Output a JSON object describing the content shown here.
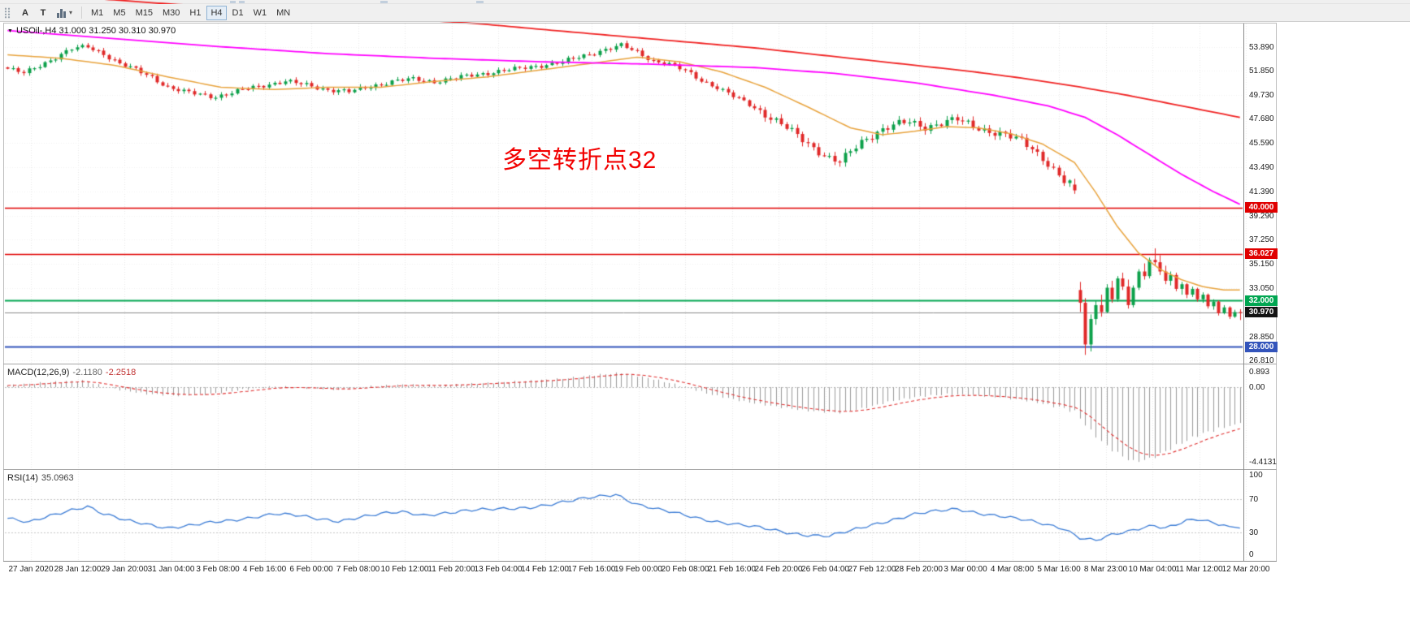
{
  "toolbar": {
    "letter_a": "A",
    "letter_t": "T",
    "indicator_caret": "▾",
    "timeframes": [
      "M1",
      "M5",
      "M15",
      "M30",
      "H1",
      "H4",
      "D1",
      "W1",
      "MN"
    ],
    "active_timeframe": "H4"
  },
  "chart": {
    "symbol_marker": "▼",
    "symbol_info": "USOil-,H4 31.000 31.250 30.310 30.970",
    "annotation": {
      "text": "多空转折点32",
      "color": "#f20000"
    },
    "price_axis_ticks": [
      "53.890",
      "51.850",
      "49.730",
      "47.680",
      "45.590",
      "43.490",
      "41.390",
      "39.290",
      "37.250",
      "35.150",
      "33.050",
      "30.950",
      "28.850",
      "26.810"
    ],
    "levels": [
      {
        "price": 40.0,
        "label": "40.000",
        "color": "#e00000",
        "width": 1.5
      },
      {
        "price": 36.027,
        "label": "36.027",
        "color": "#e00000",
        "width": 1.5
      },
      {
        "price": 32.0,
        "label": "32.000",
        "color": "#00a651",
        "width": 2
      },
      {
        "price": 28.0,
        "label": "28.000",
        "color": "#3354bb",
        "width": 1.8
      }
    ],
    "current_price": {
      "price": 30.97,
      "label": "30.970",
      "line_color": "#8a8a8a",
      "badge_bg": "#141414"
    }
  },
  "macd_panel": {
    "label": "MACD(12,26,9)",
    "value1": "-2.1180",
    "value2": "-2.2518",
    "ticks": [
      "0.893",
      "0.00",
      "-4.4131"
    ]
  },
  "rsi_panel": {
    "label": "RSI(14)",
    "value": "35.0963",
    "ticks": [
      "100",
      "70",
      "30",
      "0"
    ]
  },
  "time_axis": {
    "labels": [
      "27 Jan 2020",
      "28 Jan 12:00",
      "29 Jan 20:00",
      "31 Jan 04:00",
      "3 Feb 08:00",
      "4 Feb 16:00",
      "6 Feb 00:00",
      "7 Feb 08:00",
      "10 Feb 12:00",
      "11 Feb 20:00",
      "13 Feb 04:00",
      "14 Feb 12:00",
      "17 Feb 16:00",
      "19 Feb 00:00",
      "20 Feb 08:00",
      "21 Feb 16:00",
      "24 Feb 20:00",
      "26 Feb 04:00",
      "27 Feb 12:00",
      "28 Feb 20:00",
      "3 Mar 00:00",
      "4 Mar 08:00",
      "5 Mar 16:00",
      "8 Mar 23:00",
      "10 Mar 04:00",
      "11 Mar 12:00",
      "12 Mar 20:00"
    ]
  },
  "chart_data": {
    "type": "candlestick",
    "symbol": "USOil",
    "timeframe": "H4",
    "ohlc_last": {
      "open": 31.0,
      "high": 31.25,
      "low": 30.31,
      "close": 30.97
    },
    "price_range": {
      "min": 26.55,
      "max": 55.9
    },
    "candle_count": 232,
    "up_color": "#0ca04a",
    "down_color": "#e02828",
    "close_anchors": [
      [
        0,
        52.0
      ],
      [
        3,
        51.6
      ],
      [
        6,
        52.3
      ],
      [
        9,
        53.0
      ],
      [
        12,
        53.7
      ],
      [
        15,
        53.9
      ],
      [
        18,
        53.3
      ],
      [
        21,
        52.4
      ],
      [
        24,
        51.9
      ],
      [
        27,
        51.3
      ],
      [
        30,
        50.4
      ],
      [
        33,
        50.0
      ],
      [
        36,
        49.8
      ],
      [
        39,
        49.6
      ],
      [
        42,
        49.9
      ],
      [
        45,
        50.3
      ],
      [
        48,
        50.6
      ],
      [
        52,
        50.9
      ],
      [
        56,
        50.6
      ],
      [
        60,
        50.2
      ],
      [
        64,
        50.0
      ],
      [
        68,
        50.5
      ],
      [
        72,
        50.9
      ],
      [
        76,
        51.1
      ],
      [
        80,
        50.9
      ],
      [
        84,
        51.2
      ],
      [
        88,
        51.5
      ],
      [
        92,
        51.8
      ],
      [
        96,
        52.0
      ],
      [
        100,
        52.3
      ],
      [
        104,
        52.6
      ],
      [
        108,
        53.1
      ],
      [
        112,
        53.7
      ],
      [
        115,
        54.0
      ],
      [
        118,
        53.4
      ],
      [
        121,
        52.7
      ],
      [
        124,
        52.4
      ],
      [
        127,
        51.8
      ],
      [
        130,
        51.0
      ],
      [
        133,
        50.4
      ],
      [
        136,
        49.6
      ],
      [
        139,
        48.9
      ],
      [
        142,
        48.1
      ],
      [
        145,
        47.2
      ],
      [
        148,
        46.2
      ],
      [
        151,
        45.2
      ],
      [
        154,
        44.3
      ],
      [
        156,
        43.9
      ],
      [
        158,
        44.8
      ],
      [
        160,
        45.7
      ],
      [
        163,
        46.6
      ],
      [
        166,
        47.1
      ],
      [
        169,
        47.4
      ],
      [
        172,
        47.0
      ],
      [
        175,
        47.3
      ],
      [
        178,
        47.6
      ],
      [
        181,
        47.1
      ],
      [
        184,
        46.6
      ],
      [
        187,
        46.2
      ],
      [
        190,
        45.8
      ],
      [
        192,
        45.2
      ],
      [
        194,
        44.3
      ],
      [
        196,
        43.2
      ],
      [
        198,
        42.2
      ],
      [
        200,
        41.9
      ]
    ],
    "tail_start": 200,
    "tail_candles": [
      [
        42.0,
        42.5,
        41.2,
        41.5
      ],
      [
        32.9,
        33.6,
        31.0,
        31.8
      ],
      [
        31.8,
        32.2,
        27.3,
        28.2
      ],
      [
        28.2,
        30.8,
        27.6,
        30.4
      ],
      [
        30.4,
        32.0,
        29.9,
        31.6
      ],
      [
        31.6,
        32.5,
        30.6,
        31.0
      ],
      [
        31.0,
        33.4,
        30.9,
        33.1
      ],
      [
        33.1,
        33.7,
        31.8,
        32.1
      ],
      [
        32.1,
        34.1,
        31.9,
        33.9
      ],
      [
        33.9,
        34.4,
        32.9,
        33.2
      ],
      [
        33.2,
        33.8,
        31.3,
        31.6
      ],
      [
        31.6,
        33.3,
        31.4,
        33.1
      ],
      [
        33.1,
        34.7,
        32.9,
        34.5
      ],
      [
        34.5,
        35.2,
        33.8,
        34.1
      ],
      [
        34.1,
        35.7,
        33.9,
        35.5
      ],
      [
        35.5,
        36.5,
        35.0,
        35.3
      ],
      [
        35.3,
        35.9,
        34.2,
        34.5
      ],
      [
        34.5,
        35.0,
        33.4,
        33.7
      ],
      [
        33.7,
        34.5,
        33.3,
        34.2
      ],
      [
        34.2,
        34.4,
        32.8,
        33.0
      ],
      [
        33.0,
        33.6,
        32.5,
        33.4
      ],
      [
        33.4,
        33.5,
        32.2,
        32.5
      ],
      [
        32.5,
        33.2,
        32.3,
        33.0
      ],
      [
        33.0,
        33.1,
        31.9,
        32.1
      ],
      [
        32.1,
        32.7,
        31.8,
        32.5
      ],
      [
        32.5,
        32.6,
        31.3,
        31.5
      ],
      [
        31.5,
        32.1,
        31.2,
        31.9
      ],
      [
        31.9,
        32.0,
        30.7,
        30.9
      ],
      [
        30.9,
        31.6,
        30.8,
        31.4
      ],
      [
        31.4,
        31.5,
        30.4,
        30.6
      ],
      [
        30.6,
        31.2,
        30.5,
        31.0
      ],
      [
        31.0,
        31.25,
        30.31,
        30.97
      ]
    ],
    "moving_averages": [
      {
        "name": "ma-fast-orange",
        "color": "#e8a33d",
        "width": 1.5,
        "anchors": [
          [
            0,
            53.2
          ],
          [
            10,
            52.9
          ],
          [
            20,
            52.3
          ],
          [
            30,
            51.3
          ],
          [
            40,
            50.4
          ],
          [
            50,
            50.2
          ],
          [
            60,
            50.4
          ],
          [
            70,
            50.4
          ],
          [
            80,
            50.9
          ],
          [
            90,
            51.3
          ],
          [
            100,
            51.9
          ],
          [
            110,
            52.5
          ],
          [
            118,
            53.0
          ],
          [
            126,
            52.6
          ],
          [
            134,
            51.7
          ],
          [
            142,
            50.4
          ],
          [
            150,
            48.7
          ],
          [
            158,
            46.9
          ],
          [
            164,
            46.3
          ],
          [
            170,
            46.6
          ],
          [
            176,
            47.0
          ],
          [
            182,
            46.9
          ],
          [
            188,
            46.4
          ],
          [
            194,
            45.5
          ],
          [
            200,
            43.9
          ],
          [
            204,
            41.3
          ],
          [
            208,
            38.4
          ],
          [
            212,
            36.1
          ],
          [
            216,
            34.7
          ],
          [
            220,
            33.8
          ],
          [
            224,
            33.2
          ],
          [
            228,
            32.9
          ],
          [
            231,
            32.9
          ]
        ]
      },
      {
        "name": "ma-mid-magenta",
        "color": "#ff00ff",
        "width": 1.8,
        "anchors": [
          [
            0,
            55.3
          ],
          [
            20,
            54.6
          ],
          [
            40,
            53.9
          ],
          [
            60,
            53.3
          ],
          [
            80,
            52.9
          ],
          [
            100,
            52.6
          ],
          [
            120,
            52.4
          ],
          [
            140,
            52.1
          ],
          [
            155,
            51.6
          ],
          [
            170,
            50.8
          ],
          [
            185,
            49.7
          ],
          [
            195,
            48.8
          ],
          [
            202,
            47.8
          ],
          [
            208,
            46.3
          ],
          [
            214,
            44.6
          ],
          [
            220,
            42.9
          ],
          [
            226,
            41.4
          ],
          [
            231,
            40.3
          ]
        ]
      },
      {
        "name": "ma-slow-red",
        "color": "#f02222",
        "width": 1.8,
        "anchors": [
          [
            0,
            58.6
          ],
          [
            30,
            57.6
          ],
          [
            60,
            56.7
          ],
          [
            88,
            55.9
          ],
          [
            100,
            55.4
          ],
          [
            110,
            55.0
          ],
          [
            120,
            54.6
          ],
          [
            130,
            54.2
          ],
          [
            140,
            53.8
          ],
          [
            150,
            53.3
          ],
          [
            160,
            52.8
          ],
          [
            170,
            52.3
          ],
          [
            180,
            51.8
          ],
          [
            190,
            51.2
          ],
          [
            200,
            50.5
          ],
          [
            210,
            49.7
          ],
          [
            220,
            48.8
          ],
          [
            231,
            47.8
          ]
        ]
      }
    ],
    "macd": {
      "range": {
        "min": -4.85,
        "max": 1.3
      },
      "hist_color": "#9a9a9a",
      "signal_color": "#e03131",
      "anchors": [
        [
          0,
          0.1
        ],
        [
          8,
          0.3
        ],
        [
          14,
          0.38
        ],
        [
          20,
          -0.1
        ],
        [
          26,
          -0.4
        ],
        [
          32,
          -0.5
        ],
        [
          38,
          -0.4
        ],
        [
          44,
          -0.15
        ],
        [
          50,
          0.05
        ],
        [
          56,
          -0.05
        ],
        [
          62,
          -0.15
        ],
        [
          68,
          0.05
        ],
        [
          74,
          0.15
        ],
        [
          80,
          0.1
        ],
        [
          86,
          0.18
        ],
        [
          92,
          0.28
        ],
        [
          98,
          0.38
        ],
        [
          104,
          0.5
        ],
        [
          110,
          0.72
        ],
        [
          115,
          0.85
        ],
        [
          120,
          0.55
        ],
        [
          126,
          0.1
        ],
        [
          132,
          -0.45
        ],
        [
          138,
          -0.85
        ],
        [
          144,
          -1.15
        ],
        [
          150,
          -1.4
        ],
        [
          156,
          -1.52
        ],
        [
          161,
          -1.2
        ],
        [
          166,
          -0.8
        ],
        [
          171,
          -0.55
        ],
        [
          176,
          -0.42
        ],
        [
          181,
          -0.48
        ],
        [
          186,
          -0.6
        ],
        [
          191,
          -0.8
        ],
        [
          196,
          -1.1
        ],
        [
          200,
          -1.45
        ],
        [
          203,
          -2.6
        ],
        [
          206,
          -3.5
        ],
        [
          209,
          -4.1
        ],
        [
          211,
          -4.41
        ],
        [
          214,
          -4.25
        ],
        [
          217,
          -3.8
        ],
        [
          220,
          -3.3
        ],
        [
          223,
          -2.85
        ],
        [
          226,
          -2.55
        ],
        [
          229,
          -2.3
        ],
        [
          231,
          -2.118
        ]
      ]
    },
    "rsi": {
      "range": {
        "min": -5,
        "max": 105
      },
      "levels": [
        70,
        30
      ],
      "color": "#3a7bd5",
      "anchors": [
        [
          0,
          47
        ],
        [
          4,
          41
        ],
        [
          8,
          50
        ],
        [
          12,
          58
        ],
        [
          15,
          62
        ],
        [
          18,
          52
        ],
        [
          22,
          44
        ],
        [
          26,
          40
        ],
        [
          30,
          36
        ],
        [
          34,
          38
        ],
        [
          38,
          41
        ],
        [
          42,
          44
        ],
        [
          46,
          49
        ],
        [
          50,
          53
        ],
        [
          54,
          50
        ],
        [
          58,
          46
        ],
        [
          62,
          44
        ],
        [
          66,
          49
        ],
        [
          70,
          52
        ],
        [
          74,
          54
        ],
        [
          78,
          51
        ],
        [
          82,
          54
        ],
        [
          86,
          56
        ],
        [
          90,
          57
        ],
        [
          94,
          59
        ],
        [
          98,
          61
        ],
        [
          102,
          64
        ],
        [
          106,
          68
        ],
        [
          110,
          73
        ],
        [
          114,
          77
        ],
        [
          118,
          64
        ],
        [
          122,
          57
        ],
        [
          126,
          52
        ],
        [
          130,
          47
        ],
        [
          134,
          42
        ],
        [
          138,
          38
        ],
        [
          142,
          34
        ],
        [
          146,
          30
        ],
        [
          150,
          27
        ],
        [
          154,
          25
        ],
        [
          158,
          31
        ],
        [
          162,
          39
        ],
        [
          166,
          46
        ],
        [
          170,
          52
        ],
        [
          174,
          55
        ],
        [
          178,
          58
        ],
        [
          182,
          54
        ],
        [
          186,
          50
        ],
        [
          190,
          45
        ],
        [
          194,
          40
        ],
        [
          198,
          35
        ],
        [
          201,
          24
        ],
        [
          204,
          20
        ],
        [
          207,
          26
        ],
        [
          210,
          30
        ],
        [
          213,
          36
        ],
        [
          215,
          39
        ],
        [
          217,
          36
        ],
        [
          219,
          40
        ],
        [
          221,
          44
        ],
        [
          223,
          45
        ],
        [
          225,
          42
        ],
        [
          227,
          39
        ],
        [
          229,
          37
        ],
        [
          231,
          35.1
        ]
      ]
    }
  }
}
